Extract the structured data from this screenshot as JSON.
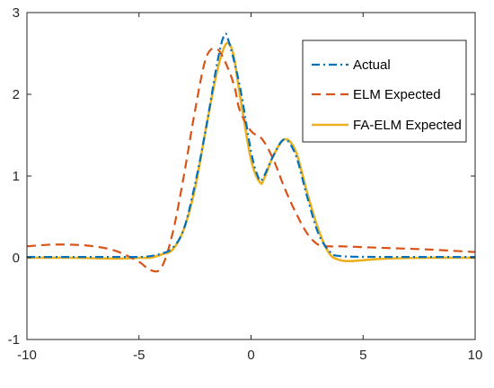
{
  "chart_data": {
    "type": "line",
    "title": "",
    "xlabel": "",
    "ylabel": "",
    "xlim": [
      -10,
      10
    ],
    "ylim": [
      -1,
      3
    ],
    "xticks": [
      -10,
      -5,
      0,
      5,
      10
    ],
    "yticks": [
      -1,
      0,
      1,
      2,
      3
    ],
    "xtick_labels": [
      "-10",
      "-5",
      "0",
      "5",
      "10"
    ],
    "ytick_labels": [
      "-1",
      "0",
      "1",
      "2",
      "3"
    ],
    "grid": false,
    "legend_position": "top-right",
    "series": [
      {
        "name": "Actual",
        "color": "#0072BD",
        "line_style": "dash-dot",
        "x": [
          -10,
          -8,
          -6,
          -5,
          -4.5,
          -4,
          -3.5,
          -3,
          -2.5,
          -2,
          -1.5,
          -1.2,
          -1,
          -0.5,
          0,
          0.3,
          0.5,
          1,
          1.5,
          2,
          2.5,
          3,
          3.5,
          4,
          6,
          8,
          10
        ],
        "y": [
          0.01,
          0.01,
          0.01,
          0.01,
          0.02,
          0.05,
          0.12,
          0.35,
          0.9,
          1.6,
          2.4,
          2.72,
          2.65,
          2.1,
          1.3,
          1.0,
          0.96,
          1.25,
          1.45,
          1.25,
          0.75,
          0.3,
          0.08,
          0.02,
          0.01,
          0.01,
          0.01
        ]
      },
      {
        "name": "ELM Expected",
        "color": "#D95319",
        "line_style": "dashed",
        "x": [
          -10,
          -9,
          -8,
          -7,
          -6,
          -5,
          -4.5,
          -4,
          -3.5,
          -3,
          -2.5,
          -2,
          -1.5,
          -1,
          -0.7,
          -0.5,
          0,
          0.5,
          1,
          1.5,
          2,
          2.5,
          3,
          3.5,
          4,
          5,
          6,
          8,
          10
        ],
        "y": [
          0.14,
          0.16,
          0.16,
          0.14,
          0.08,
          -0.05,
          -0.15,
          -0.12,
          0.3,
          1.0,
          1.8,
          2.45,
          2.55,
          2.3,
          2.05,
          1.8,
          1.55,
          1.45,
          1.2,
          0.85,
          0.55,
          0.3,
          0.16,
          0.14,
          0.14,
          0.13,
          0.12,
          0.1,
          0.07
        ]
      },
      {
        "name": "FA-ELM Expected",
        "color": "#EDB120",
        "line_style": "solid",
        "x": [
          -10,
          -8,
          -6,
          -5,
          -4.5,
          -4,
          -3.5,
          -3,
          -2.5,
          -2,
          -1.5,
          -1.1,
          -0.8,
          -0.5,
          0,
          0.4,
          0.6,
          1,
          1.5,
          2,
          2.5,
          3,
          3.5,
          4,
          4.5,
          5,
          6,
          8,
          10
        ],
        "y": [
          0.0,
          0.0,
          -0.01,
          0.0,
          0.0,
          0.04,
          0.1,
          0.35,
          0.85,
          1.6,
          2.3,
          2.62,
          2.5,
          2.0,
          1.2,
          0.92,
          0.98,
          1.25,
          1.45,
          1.3,
          0.8,
          0.35,
          0.05,
          -0.03,
          -0.04,
          -0.03,
          -0.01,
          0.0,
          0.0
        ]
      }
    ]
  }
}
